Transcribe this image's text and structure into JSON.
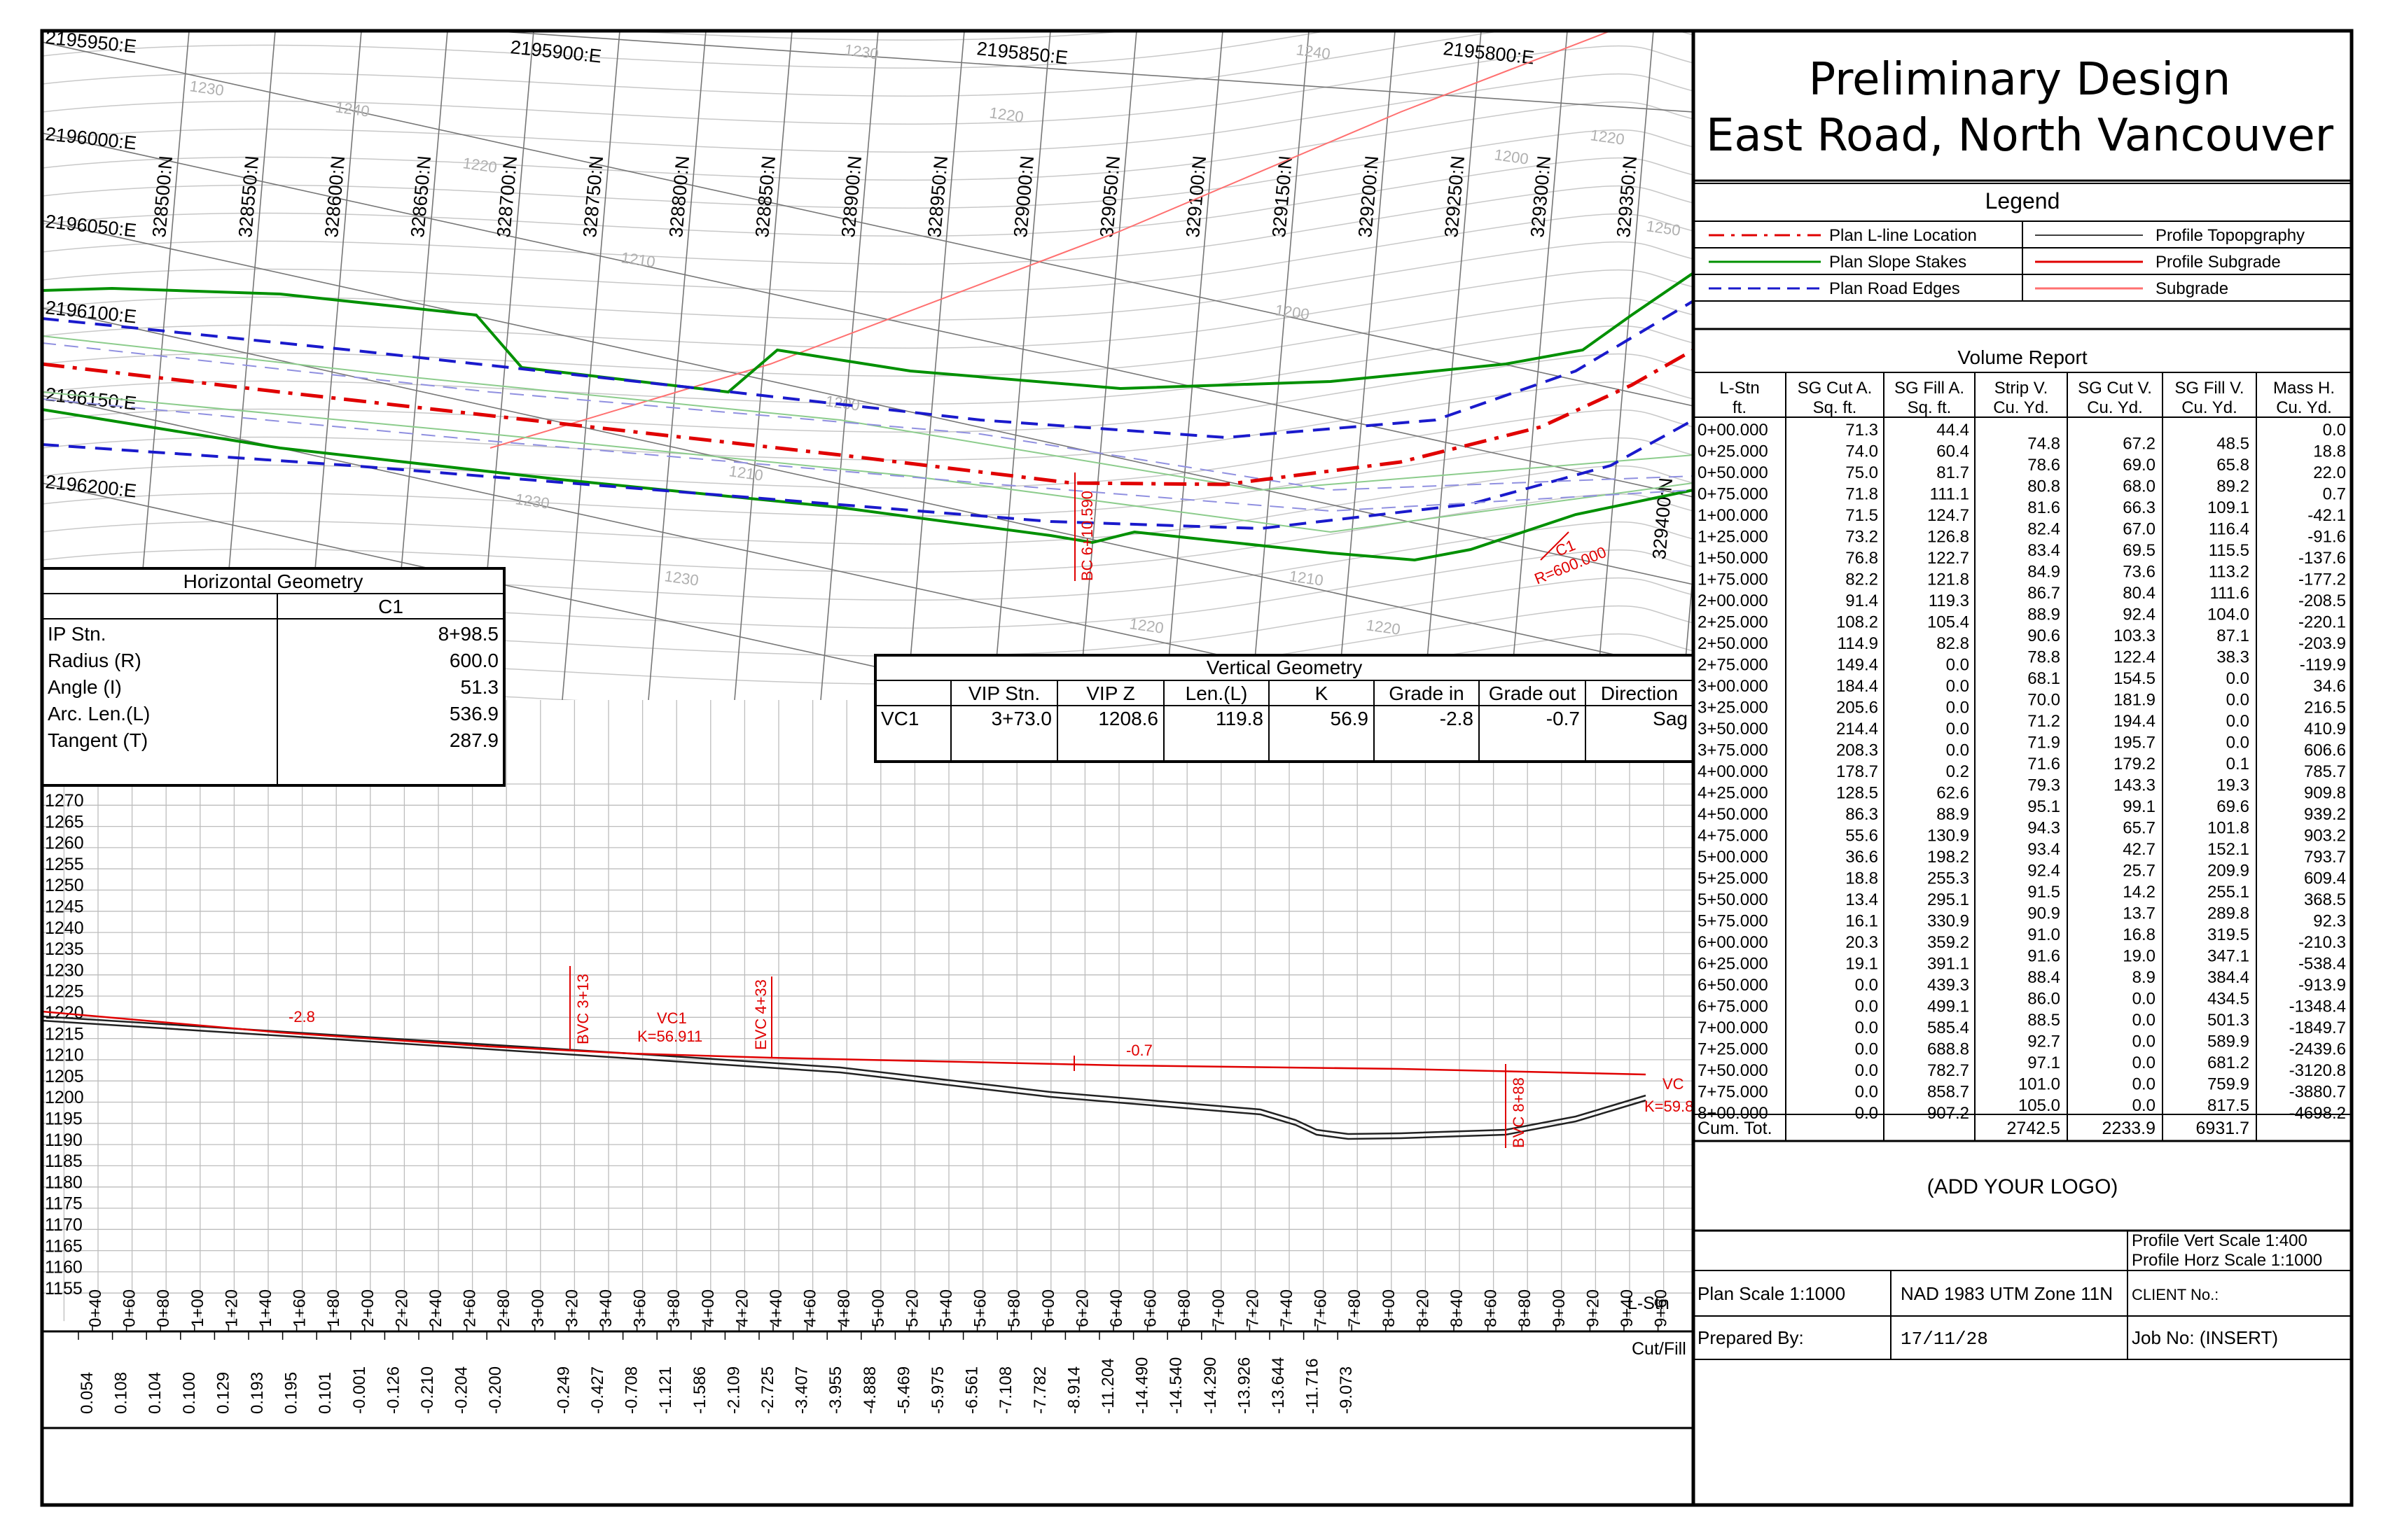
{
  "title": {
    "line1": "Preliminary Design",
    "line2": "East Road, North Vancouver"
  },
  "legend": {
    "heading": "Legend",
    "items": [
      {
        "label": "Plan L-line Location",
        "color": "#e00000",
        "style": "dashdot"
      },
      {
        "label": "Plan Slope Stakes",
        "color": "#009000",
        "style": "solid"
      },
      {
        "label": "Plan Road Edges",
        "color": "#1a1acc",
        "style": "dashed"
      },
      {
        "label": "Profile Topopgraphy",
        "color": "#000000",
        "style": "solid"
      },
      {
        "label": "Profile Subgrade",
        "color": "#e00000",
        "style": "solid"
      },
      {
        "label": "Subgrade",
        "color": "#ff7070",
        "style": "solid"
      }
    ]
  },
  "volume_report": {
    "heading": "Volume Report",
    "columns": [
      {
        "l1": "L-Stn",
        "l2": "ft."
      },
      {
        "l1": "SG Cut A.",
        "l2": "Sq. ft."
      },
      {
        "l1": "SG Fill A.",
        "l2": "Sq. ft."
      },
      {
        "l1": "Strip V.",
        "l2": "Cu. Yd."
      },
      {
        "l1": "SG Cut V.",
        "l2": "Cu. Yd."
      },
      {
        "l1": "SG Fill V.",
        "l2": "Cu. Yd."
      },
      {
        "l1": "Mass H.",
        "l2": "Cu. Yd."
      }
    ],
    "stations": [
      "0+00.000",
      "0+25.000",
      "0+50.000",
      "0+75.000",
      "1+00.000",
      "1+25.000",
      "1+50.000",
      "1+75.000",
      "2+00.000",
      "2+25.000",
      "2+50.000",
      "2+75.000",
      "3+00.000",
      "3+25.000",
      "3+50.000",
      "3+75.000",
      "4+00.000",
      "4+25.000",
      "4+50.000",
      "4+75.000",
      "5+00.000",
      "5+25.000",
      "5+50.000",
      "5+75.000",
      "6+00.000",
      "6+25.000",
      "6+50.000",
      "6+75.000",
      "7+00.000",
      "7+25.000",
      "7+50.000",
      "7+75.000",
      "8+00.000"
    ],
    "cut_area": [
      "71.3",
      "74.0",
      "75.0",
      "71.8",
      "71.5",
      "73.2",
      "76.8",
      "82.2",
      "91.4",
      "108.2",
      "114.9",
      "149.4",
      "184.4",
      "205.6",
      "214.4",
      "208.3",
      "178.7",
      "128.5",
      "86.3",
      "55.6",
      "36.6",
      "18.8",
      "13.4",
      "16.1",
      "20.3",
      "19.1",
      "0.0",
      "0.0",
      "0.0",
      "0.0",
      "0.0",
      "0.0",
      "0.0"
    ],
    "fill_area": [
      "44.4",
      "60.4",
      "81.7",
      "111.1",
      "124.7",
      "126.8",
      "122.7",
      "121.8",
      "119.3",
      "105.4",
      "82.8",
      "0.0",
      "0.0",
      "0.0",
      "0.0",
      "0.0",
      "0.2",
      "62.6",
      "88.9",
      "130.9",
      "198.2",
      "255.3",
      "295.1",
      "330.9",
      "359.2",
      "391.1",
      "439.3",
      "499.1",
      "585.4",
      "688.8",
      "782.7",
      "858.7",
      "907.2"
    ],
    "strip_v": [
      "74.8",
      "78.6",
      "80.8",
      "81.6",
      "82.4",
      "83.4",
      "84.9",
      "86.7",
      "88.9",
      "90.6",
      "78.8",
      "68.1",
      "70.0",
      "71.2",
      "71.9",
      "71.6",
      "79.3",
      "95.1",
      "94.3",
      "93.4",
      "92.4",
      "91.5",
      "90.9",
      "91.0",
      "91.6",
      "88.4",
      "86.0",
      "88.5",
      "92.7",
      "97.1",
      "101.0",
      "105.0"
    ],
    "cut_v": [
      "67.2",
      "69.0",
      "68.0",
      "66.3",
      "67.0",
      "69.5",
      "73.6",
      "80.4",
      "92.4",
      "103.3",
      "122.4",
      "154.5",
      "181.9",
      "194.4",
      "195.7",
      "179.2",
      "143.3",
      "99.1",
      "65.7",
      "42.7",
      "25.7",
      "14.2",
      "13.7",
      "16.8",
      "19.0",
      "8.9",
      "0.0",
      "0.0",
      "0.0",
      "0.0",
      "0.0",
      "0.0"
    ],
    "fill_v": [
      "48.5",
      "65.8",
      "89.2",
      "109.1",
      "116.4",
      "115.5",
      "113.2",
      "111.6",
      "104.0",
      "87.1",
      "38.3",
      "0.0",
      "0.0",
      "0.0",
      "0.0",
      "0.1",
      "19.3",
      "69.6",
      "101.8",
      "152.1",
      "209.9",
      "255.1",
      "289.8",
      "319.5",
      "347.1",
      "384.4",
      "434.5",
      "501.3",
      "589.9",
      "681.2",
      "759.9",
      "817.5"
    ],
    "mass_h": [
      "0.0",
      "18.8",
      "22.0",
      "0.7",
      "-42.1",
      "-91.6",
      "-137.6",
      "-177.2",
      "-208.5",
      "-220.1",
      "-203.9",
      "-119.9",
      "34.6",
      "216.5",
      "410.9",
      "606.6",
      "785.7",
      "909.8",
      "939.2",
      "903.2",
      "793.7",
      "609.4",
      "368.5",
      "92.3",
      "-210.3",
      "-538.4",
      "-913.9",
      "-1348.4",
      "-1849.7",
      "-2439.6",
      "-3120.8",
      "-3880.7",
      "-4698.2"
    ],
    "totals": {
      "label": "Cum. Tot.",
      "strip": "2742.5",
      "cut": "2233.9",
      "fill": "6931.7"
    }
  },
  "logo_placeholder": "(ADD YOUR LOGO)",
  "info": {
    "vert_scale": "Profile Vert Scale 1:400",
    "horz_scale": "Profile Horz Scale 1:1000",
    "plan_scale": "Plan Scale 1:1000",
    "datum": "NAD 1983 UTM Zone 11N",
    "client": "CLIENT No.:",
    "prepared_by": "Prepared By:",
    "date": "17/11/28",
    "job_no": "Job No: (INSERT)"
  },
  "horizontal_geometry": {
    "heading": "Horizontal Geometry",
    "curve": "C1",
    "rows": [
      {
        "label": "IP Stn.",
        "value": "8+98.5"
      },
      {
        "label": "Radius (R)",
        "value": "600.0"
      },
      {
        "label": "Angle (I)",
        "value": "51.3"
      },
      {
        "label": "Arc. Len.(L)",
        "value": "536.9"
      },
      {
        "label": "Tangent (T)",
        "value": "287.9"
      }
    ]
  },
  "vertical_geometry": {
    "heading": "Vertical Geometry",
    "headers": [
      "VIP Stn.",
      "VIP Z",
      "Len.(L)",
      "K",
      "Grade in",
      "Grade out",
      "Direction"
    ],
    "row": {
      "name": "VC1",
      "values": [
        "3+73.0",
        "1208.6",
        "119.8",
        "56.9",
        "-2.8",
        "-0.7",
        "Sag"
      ]
    }
  },
  "plan": {
    "easting_labels": [
      "2195950:E",
      "2195900:E",
      "2195850:E",
      "2195800:E",
      "2196000:E",
      "2196050:E",
      "2196100:E",
      "2196150:E",
      "2196200:E"
    ],
    "northing_labels": [
      "328500:N",
      "328550:N",
      "328600:N",
      "328650:N",
      "328700:N",
      "328750:N",
      "328800:N",
      "328850:N",
      "328900:N",
      "328950:N",
      "329000:N",
      "329050:N",
      "329100:N",
      "329150:N",
      "329200:N",
      "329250:N",
      "329300:N",
      "329350:N",
      "329400:N"
    ],
    "contour_labels": [
      "1240",
      "1230",
      "1220",
      "1230",
      "1240",
      "1220",
      "1210",
      "1200",
      "1200",
      "1200",
      "1210",
      "1220",
      "1230",
      "1210",
      "1220",
      "1230",
      "1210",
      "1220",
      "1230",
      "1250"
    ],
    "bc_label": "BC 6+10.590",
    "curve_label": "C1",
    "radius_label": "R=600.000"
  },
  "profile": {
    "elevations": [
      "1270",
      "1265",
      "1260",
      "1255",
      "1250",
      "1245",
      "1240",
      "1235",
      "1230",
      "1225",
      "1220",
      "1215",
      "1210",
      "1205",
      "1200",
      "1195",
      "1190",
      "1185",
      "1180",
      "1175",
      "1170",
      "1165",
      "1160",
      "1155"
    ],
    "stations": [
      "0+40",
      "0+60",
      "0+80",
      "1+00",
      "1+20",
      "1+40",
      "1+60",
      "1+80",
      "2+00",
      "2+20",
      "2+40",
      "2+60",
      "2+80",
      "3+00",
      "3+20",
      "3+40",
      "3+60",
      "3+80",
      "4+00",
      "4+20",
      "4+40",
      "4+60",
      "4+80",
      "5+00",
      "5+20",
      "5+40",
      "5+60",
      "5+80",
      "6+00",
      "6+20",
      "6+40",
      "6+60",
      "6+80",
      "7+00",
      "7+20",
      "7+40",
      "7+60",
      "7+80",
      "8+00",
      "8+20",
      "8+40",
      "8+60",
      "8+80",
      "9+00",
      "9+20",
      "9+40",
      "9+60"
    ],
    "cutfill": [
      "0.054",
      "0.108",
      "0.104",
      "0.100",
      "0.129",
      "0.193",
      "0.195",
      "0.101",
      "-0.001",
      "-0.126",
      "-0.210",
      "-0.204",
      "-0.200",
      "-0.249",
      "-0.427",
      "-0.708",
      "-1.121",
      "-1.586",
      "-2.109",
      "-2.725",
      "-3.407",
      "-3.955",
      "-4.888",
      "-5.469",
      "-5.975",
      "-6.561",
      "-7.108",
      "-7.782",
      "-8.914",
      "-11.204",
      "-14.490",
      "-14.540",
      "-14.290",
      "-13.926",
      "-13.644",
      "-11.716",
      "-9.073"
    ],
    "lstn_label": "L-Stn",
    "cutfill_label": "Cut/Fill",
    "grade_in_label": "-2.8",
    "grade_out_label": "-0.7",
    "bvc_label": "BVC 3+13",
    "evc_label": "EVC 4+33",
    "vc_label": "VC1",
    "k_label": "K=56.911",
    "bvc2_label": "BVC 8+88",
    "vc2_label": "VC",
    "k2_label": "K=59.8"
  }
}
